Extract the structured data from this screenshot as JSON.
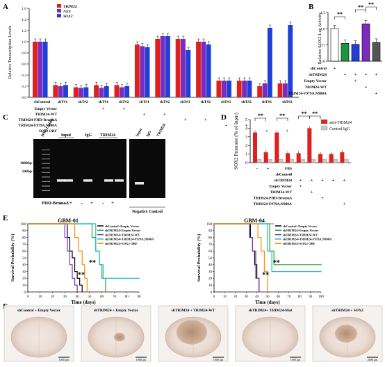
{
  "panels": {
    "A": {
      "letter": "A",
      "ylabel": "Relative Transcription Levels",
      "legend": [
        {
          "name": "TRIM24",
          "color": "#e0201c"
        },
        {
          "name": "NES",
          "color": "#7b2cbf"
        },
        {
          "name": "SOX2",
          "color": "#1f3fd6"
        }
      ],
      "yticks": [
        "0.0",
        "0.2",
        "0.4",
        "0.6",
        "0.8",
        "1.0",
        "1.2",
        "1.4",
        "1.6"
      ],
      "ylim": [
        0,
        1.6
      ],
      "categories": [
        "shControl",
        "shT#1",
        "shT#2",
        "shT#1",
        "shT#2",
        "shT#1",
        "shT#2",
        "shT#1",
        "shT#2",
        "shT#1",
        "shT#2",
        "shT#1",
        "shT#2"
      ],
      "series": [
        {
          "name": "TRIM24",
          "values": [
            1.0,
            0.22,
            0.18,
            0.22,
            0.22,
            0.95,
            1.05,
            1.05,
            1.0,
            0.3,
            0.3,
            0.2,
            0.25
          ]
        },
        {
          "name": "NES",
          "values": [
            1.0,
            0.2,
            0.17,
            0.17,
            0.18,
            0.92,
            1.1,
            1.05,
            1.0,
            0.3,
            0.3,
            0.25,
            0.25
          ]
        },
        {
          "name": "SOX2",
          "values": [
            1.0,
            0.22,
            0.18,
            0.2,
            0.2,
            0.9,
            1.1,
            0.85,
            0.95,
            0.3,
            0.3,
            1.25,
            1.3
          ]
        }
      ],
      "rows": [
        {
          "label": "Empty Vector",
          "marks": [
            "",
            "",
            "",
            "+",
            "+",
            "",
            "",
            "",
            "",
            "",
            "",
            "",
            ""
          ]
        },
        {
          "label": "TRIM24-WT",
          "marks": [
            "",
            "",
            "",
            "",
            "",
            "+",
            "+",
            "",
            "",
            "",
            "",
            "",
            ""
          ]
        },
        {
          "label": "TRIM24-PHD-BromoΔ",
          "marks": [
            "",
            "",
            "",
            "",
            "",
            "",
            "",
            "+",
            "+",
            "",
            "",
            "",
            ""
          ]
        },
        {
          "label": "TRIM24-F979A,N980A",
          "marks": [
            "",
            "",
            "",
            "",
            "",
            "",
            "",
            "",
            "",
            "+",
            "+",
            "",
            ""
          ]
        },
        {
          "label": "SOX2 ORF",
          "marks": [
            "",
            "",
            "",
            "",
            "",
            "",
            "",
            "",
            "",
            "",
            "",
            "+",
            "+"
          ]
        }
      ]
    },
    "B": {
      "letter": "B",
      "ylabel": "Relative SOX2-Luc Activity",
      "yticks": [
        "0.0",
        "0.5",
        "1.0",
        "1.5"
      ],
      "ylim": [
        0,
        1.5
      ],
      "values": [
        1.0,
        0.55,
        0.52,
        1.15,
        0.58
      ],
      "colors": [
        "#ffffff",
        "#1a9641",
        "#1f3fd6",
        "#7b2cbf",
        "#555555"
      ],
      "sig": [
        "**",
        "**",
        "**"
      ],
      "rows": [
        {
          "label": "shControl",
          "marks": [
            "+",
            "",
            "",
            "",
            ""
          ]
        },
        {
          "label": "shTRIM24",
          "marks": [
            "",
            "+",
            "+",
            "+",
            "+"
          ]
        },
        {
          "label": "Empty Vector",
          "marks": [
            "",
            "",
            "+",
            "",
            ""
          ]
        },
        {
          "label": "TRIM24-WT",
          "marks": [
            "",
            "",
            "",
            "+",
            ""
          ]
        },
        {
          "label": "TRIM24-F979A,N980A",
          "marks": [
            "",
            "",
            "",
            "",
            "+"
          ]
        }
      ]
    },
    "C": {
      "letter": "C",
      "lane_labels": [
        "DNA Ladder",
        "Input",
        "IgG",
        "TRIM24",
        "Input",
        "IgG",
        "TRIM24"
      ],
      "size_labels": [
        "1000bp",
        "500bp"
      ],
      "row_label": "PHD-BromoΔ",
      "marks": [
        "-",
        "+",
        "-",
        "+",
        "-",
        "+"
      ],
      "neg_label": "Negative Control"
    },
    "D": {
      "letter": "D",
      "ylabel": "SOX2 Promoter (% of Input)",
      "yticks": [
        "0",
        "1",
        "2",
        "3",
        "4",
        "5"
      ],
      "ylim": [
        0,
        5
      ],
      "legend": [
        {
          "name": "anti-TRIM24",
          "color": "#e0201c"
        },
        {
          "name": "Control IgG",
          "color": "#c8c8c8"
        }
      ],
      "anti": [
        3.5,
        1.2,
        3.5,
        1.1,
        1.1,
        4.0,
        1.0,
        1.0,
        1.2
      ],
      "igg": [
        0.4,
        0.4,
        0.4,
        0.4,
        0.4,
        0.4,
        0.4,
        0.4,
        0.4
      ],
      "rows": [
        {
          "label": "FBS",
          "marks": [
            "-",
            "+",
            "",
            "",
            "",
            "",
            "",
            "",
            ""
          ]
        },
        {
          "label": "shControl",
          "marks": [
            "",
            "",
            "-",
            "+",
            "",
            "",
            "",
            "",
            ""
          ]
        },
        {
          "label": "shTRIM24",
          "marks": [
            "",
            "",
            "",
            "",
            "+",
            "+",
            "+",
            "+",
            "+"
          ]
        },
        {
          "label": "Empty Vector",
          "marks": [
            "",
            "",
            "",
            "",
            "+",
            "",
            "",
            "",
            ""
          ]
        },
        {
          "label": "TRIM24-WT",
          "marks": [
            "",
            "",
            "",
            "",
            "",
            "+",
            "",
            "",
            ""
          ]
        },
        {
          "label": "TRIM24-PHD-BromoΔ",
          "marks": [
            "",
            "",
            "",
            "",
            "",
            "",
            "+",
            "",
            ""
          ]
        },
        {
          "label": "TRIM24-F979A,N980A",
          "marks": [
            "",
            "",
            "",
            "",
            "",
            "",
            "",
            "",
            "+"
          ]
        }
      ]
    },
    "E": {
      "letter": "E",
      "ylabel": "Survival Probability (%)",
      "xlabel": "Time (days)",
      "yticks": [
        "0",
        "10",
        "20",
        "30",
        "40",
        "50",
        "60",
        "70",
        "80",
        "90",
        "100"
      ],
      "plots": [
        {
          "title": "GBM-01",
          "xticks": [
            "0",
            "10",
            "20",
            "30",
            "40",
            "50",
            "60",
            "70",
            "80",
            "90"
          ],
          "xlim": [
            0,
            90
          ],
          "sig": [
            "**",
            "**"
          ],
          "series": [
            {
              "name": "shControl+Empty Vector",
              "color": "#000000",
              "x": [
                0,
                30,
                32,
                34,
                36,
                38,
                40,
                42,
                44
              ],
              "y": [
                100,
                100,
                80,
                60,
                50,
                30,
                20,
                10,
                0
              ]
            },
            {
              "name": "shTRIM24+Empty Vector",
              "color": "#2ca02c",
              "x": [
                0,
                50,
                52,
                55,
                58,
                60,
                63
              ],
              "y": [
                100,
                100,
                80,
                60,
                40,
                20,
                0
              ]
            },
            {
              "name": "shTRIM24+TRIM24-WT",
              "color": "#7b2cbf",
              "x": [
                0,
                28,
                30,
                32,
                34,
                36,
                38,
                40
              ],
              "y": [
                100,
                100,
                80,
                60,
                40,
                20,
                10,
                0
              ]
            },
            {
              "name": "shTRIM24+TRIM24-F979A,N980A",
              "color": "#17becf",
              "x": [
                0,
                52,
                55,
                58,
                61,
                90
              ],
              "y": [
                100,
                100,
                60,
                40,
                20,
                20
              ]
            },
            {
              "name": "shTRIM24+SOX2 ORF",
              "color": "#ff8c00",
              "x": [
                0,
                36,
                38,
                41,
                44,
                46,
                48
              ],
              "y": [
                100,
                100,
                80,
                60,
                40,
                20,
                0
              ]
            }
          ]
        },
        {
          "title": "GBM-04",
          "xticks": [
            "0",
            "10",
            "20",
            "30",
            "40",
            "50",
            "60",
            "70",
            "80",
            "90",
            "100"
          ],
          "xlim": [
            0,
            100
          ],
          "sig": [
            "**",
            "**"
          ],
          "series": [
            {
              "name": "shControl+Empty Vector",
              "color": "#000000",
              "x": [
                0,
                32,
                34,
                36,
                38,
                40,
                42
              ],
              "y": [
                100,
                100,
                80,
                60,
                40,
                20,
                0
              ]
            },
            {
              "name": "shTRIM24+Empty Vector",
              "color": "#2ca02c",
              "x": [
                0,
                48,
                52,
                56,
                100
              ],
              "y": [
                100,
                100,
                60,
                40,
                40
              ]
            },
            {
              "name": "shTRIM24+TRIM24-WT",
              "color": "#7b2cbf",
              "x": [
                0,
                30,
                33,
                36,
                39,
                42
              ],
              "y": [
                100,
                100,
                80,
                60,
                20,
                0
              ]
            },
            {
              "name": "shTRIM24+TRIM24-F979A,N980A",
              "color": "#17becf",
              "x": [
                0,
                46,
                50,
                54,
                100
              ],
              "y": [
                100,
                100,
                60,
                30,
                30
              ]
            },
            {
              "name": "shTRIM24+SOX2 ORF",
              "color": "#ff8c00",
              "x": [
                0,
                38,
                41,
                44,
                47,
                50
              ],
              "y": [
                100,
                100,
                80,
                60,
                30,
                0
              ]
            }
          ]
        }
      ]
    },
    "F": {
      "letter": "F",
      "images": [
        {
          "label": "shControl + Empty Vector",
          "scale": "1000 µm"
        },
        {
          "label": "shTRIM24 + Empty Vector",
          "scale": "1000 µm"
        },
        {
          "label": "shTRIM24 + TRIM24-WT",
          "scale": "1000 µm"
        },
        {
          "label": "shTRIM24+ TRIM24-Mut",
          "scale": "1000 µm"
        },
        {
          "label": "shTRIM24 + SOX2",
          "scale": "2000 µm"
        }
      ]
    }
  }
}
